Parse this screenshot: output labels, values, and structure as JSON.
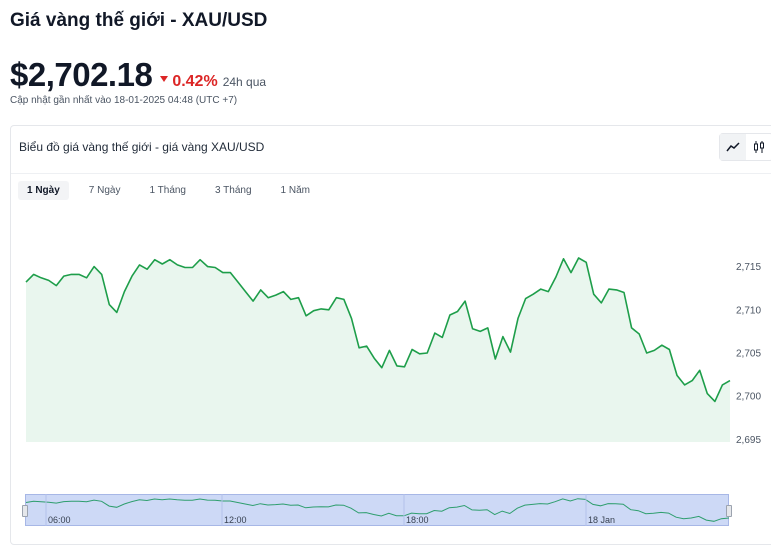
{
  "page_title": "Giá vàng thế giới - XAU/USD",
  "price": "$2,702.18",
  "change": {
    "percent": "0.42%",
    "period": "24h qua",
    "direction": "down",
    "color": "#dc2626"
  },
  "updated": "Cập nhật gần nhất vào 18-01-2025 04:48 (UTC +7)",
  "chart_card": {
    "title": "Biểu đồ giá vàng thế giới - giá vàng XAU/USD",
    "toggle": {
      "line_icon": "line-chart-icon",
      "candle_icon": "candlestick-icon",
      "active": "line"
    }
  },
  "tabs": [
    {
      "label": "1 Ngày",
      "active": true
    },
    {
      "label": "7 Ngày",
      "active": false
    },
    {
      "label": "1 Tháng",
      "active": false
    },
    {
      "label": "3 Tháng",
      "active": false
    },
    {
      "label": "1 Năm",
      "active": false
    }
  ],
  "colors": {
    "line": "#1e9e4a",
    "area": "#e9f6ee",
    "navigator_fill": "#cdd9f6",
    "navigator_line": "#2e9e6e"
  },
  "chart_data": {
    "type": "area",
    "title": "",
    "xlabel": "",
    "ylabel": "",
    "ylim": [
      2694,
      2717.5
    ],
    "yticks": [
      2695,
      2700,
      2705,
      2710,
      2715
    ],
    "ytick_labels": [
      "2,695",
      "2,700",
      "2,705",
      "2,710",
      "2,715"
    ],
    "y_axis_side": "right",
    "grid": false,
    "legend": "none",
    "series": [
      {
        "values": [
          2713.2,
          2714.1,
          2713.7,
          2713.4,
          2712.8,
          2713.9,
          2714.1,
          2714.1,
          2713.7,
          2715.0,
          2714.1,
          2710.6,
          2709.7,
          2712.1,
          2713.9,
          2715.2,
          2714.7,
          2715.8,
          2715.3,
          2715.8,
          2715.2,
          2714.9,
          2714.9,
          2715.8,
          2715.0,
          2714.9,
          2714.3,
          2714.3,
          2713.2,
          2712.1,
          2711.0,
          2712.3,
          2711.4,
          2711.7,
          2712.1,
          2711.2,
          2711.4,
          2709.3,
          2709.9,
          2710.1,
          2710.0,
          2711.4,
          2711.2,
          2709.0,
          2705.6,
          2705.8,
          2704.4,
          2703.3,
          2705.3,
          2703.5,
          2703.4,
          2705.4,
          2704.9,
          2705.0,
          2707.3,
          2706.8,
          2709.4,
          2709.8,
          2711.0,
          2707.8,
          2707.5,
          2707.9,
          2704.3,
          2706.9,
          2705.1,
          2709.0,
          2711.3,
          2711.8,
          2712.4,
          2712.1,
          2713.8,
          2715.9,
          2714.3,
          2716.0,
          2715.5,
          2711.8,
          2710.8,
          2712.4,
          2712.3,
          2712.0,
          2707.9,
          2707.2,
          2705.0,
          2705.3,
          2705.9,
          2705.4,
          2702.4,
          2701.3,
          2701.8,
          2703.0,
          2700.3,
          2699.4,
          2701.3,
          2701.8
        ]
      }
    ],
    "navigator": {
      "x_labels": [
        "06:00",
        "12:00",
        "18:00",
        "18 Jan"
      ]
    }
  }
}
